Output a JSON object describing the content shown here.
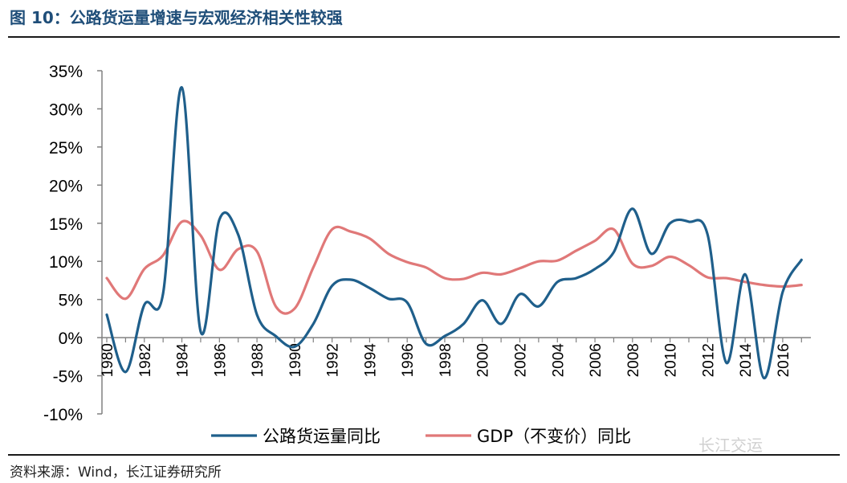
{
  "figure": {
    "title": "图 10：公路货运量增速与宏观经济相关性较强",
    "source": "资料来源：Wind，长江证券研究所",
    "watermark": "长江交运"
  },
  "chart_data": {
    "type": "line",
    "title": "",
    "xlabel": "",
    "ylabel": "",
    "ylim": [
      -10,
      35
    ],
    "yticks": [
      "-10%",
      "-5%",
      "0%",
      "5%",
      "10%",
      "15%",
      "20%",
      "25%",
      "30%",
      "35%"
    ],
    "ytick_values": [
      -10,
      -5,
      0,
      5,
      10,
      15,
      20,
      25,
      30,
      35
    ],
    "x": [
      1980,
      1981,
      1982,
      1983,
      1984,
      1985,
      1986,
      1987,
      1988,
      1989,
      1990,
      1991,
      1992,
      1993,
      1994,
      1995,
      1996,
      1997,
      1998,
      1999,
      2000,
      2001,
      2002,
      2003,
      2004,
      2005,
      2006,
      2007,
      2008,
      2009,
      2010,
      2011,
      2012,
      2013,
      2014,
      2015,
      2016,
      2017
    ],
    "xtick_labels": [
      "1980",
      "1982",
      "1984",
      "1986",
      "1988",
      "1990",
      "1992",
      "1994",
      "1996",
      "1998",
      "2000",
      "2002",
      "2004",
      "2006",
      "2008",
      "2010",
      "2012",
      "2014",
      "2016"
    ],
    "xtick_values": [
      1980,
      1982,
      1984,
      1986,
      1988,
      1990,
      1992,
      1994,
      1996,
      1998,
      2000,
      2002,
      2004,
      2006,
      2008,
      2010,
      2012,
      2014,
      2016
    ],
    "legend_position": "bottom",
    "series": [
      {
        "name": "公路货运量同比",
        "color": "#1f5f8b",
        "values": [
          3.0,
          -4.5,
          4.3,
          5.8,
          32.8,
          0.8,
          15.5,
          13.5,
          3.0,
          0.2,
          -1.2,
          1.8,
          6.8,
          7.6,
          6.5,
          5.1,
          4.6,
          -0.8,
          0.2,
          1.8,
          4.9,
          1.8,
          5.7,
          4.1,
          7.3,
          7.8,
          9.0,
          11.2,
          16.9,
          11.0,
          15.0,
          15.2,
          13.5,
          -3.3,
          8.3,
          -5.3,
          6.0,
          10.2
        ]
      },
      {
        "name": "GDP（不变价）同比",
        "color": "#e07878",
        "values": [
          7.8,
          5.1,
          9.0,
          10.8,
          15.2,
          13.4,
          8.9,
          11.6,
          11.3,
          4.1,
          3.8,
          9.2,
          14.2,
          13.9,
          13.0,
          11.0,
          9.9,
          9.2,
          7.8,
          7.7,
          8.5,
          8.3,
          9.1,
          10.0,
          10.1,
          11.4,
          12.7,
          14.2,
          9.7,
          9.4,
          10.6,
          9.5,
          7.9,
          7.8,
          7.3,
          6.9,
          6.7,
          6.9
        ]
      }
    ]
  }
}
